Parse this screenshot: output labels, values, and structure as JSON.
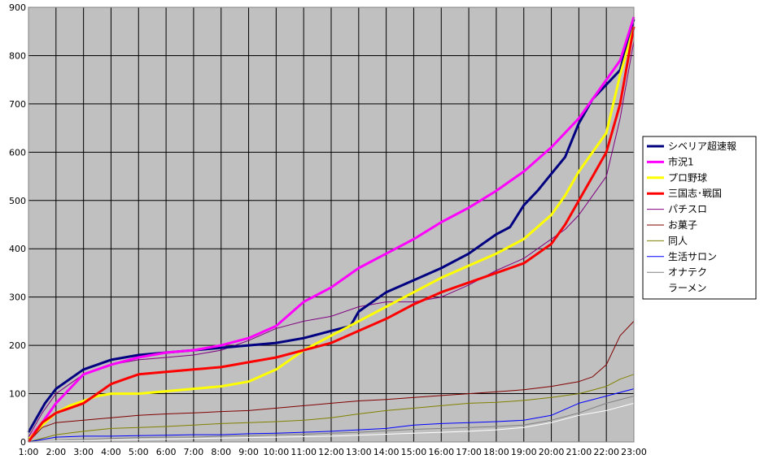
{
  "chart_data": {
    "type": "line",
    "ylim": [
      0,
      900
    ],
    "y_ticks": [
      "0",
      "100",
      "200",
      "300",
      "400",
      "500",
      "600",
      "700",
      "800",
      "900"
    ],
    "x_ticks": [
      "1:00",
      "2:00",
      "3:00",
      "4:00",
      "5:00",
      "6:00",
      "7:00",
      "8:00",
      "9:00",
      "10:00",
      "11:00",
      "12:00",
      "13:00",
      "14:00",
      "15:00",
      "16:00",
      "17:00",
      "18:00",
      "19:00",
      "20:00",
      "21:00",
      "22:00",
      "23:00"
    ],
    "x_hours": [
      1,
      2,
      3,
      4,
      5,
      6,
      7,
      8,
      9,
      10,
      11,
      12,
      13,
      14,
      15,
      16,
      17,
      18,
      19,
      20,
      21,
      22,
      23
    ],
    "grid": true,
    "legend": "right",
    "plot_bg": "#c0c0c0",
    "series": [
      {
        "name": "シベリア超速報",
        "color": "#000080",
        "width": 3,
        "x": [
          1,
          1.3,
          1.6,
          2,
          2.5,
          3,
          3.5,
          4,
          5,
          6,
          7,
          8,
          9,
          10,
          11,
          12,
          12.7,
          13,
          14,
          15,
          16,
          17,
          18,
          18.5,
          19,
          19.5,
          20,
          20.5,
          21,
          21.5,
          22,
          22.5,
          23
        ],
        "y": [
          20,
          50,
          80,
          110,
          130,
          150,
          160,
          170,
          180,
          185,
          190,
          195,
          200,
          205,
          215,
          230,
          240,
          270,
          310,
          335,
          360,
          390,
          430,
          445,
          490,
          520,
          555,
          590,
          660,
          710,
          740,
          770,
          875
        ]
      },
      {
        "name": "市況1",
        "color": "#ff00ff",
        "width": 3,
        "x": [
          1,
          1.5,
          2,
          2.5,
          3,
          4,
          5,
          6,
          7,
          8,
          9,
          10,
          11,
          12,
          13,
          14,
          15,
          16,
          17,
          18,
          19,
          20,
          21,
          22,
          22.5,
          23
        ],
        "y": [
          5,
          40,
          80,
          110,
          140,
          160,
          175,
          185,
          190,
          200,
          215,
          240,
          290,
          320,
          360,
          390,
          420,
          455,
          485,
          520,
          560,
          610,
          670,
          750,
          790,
          880
        ]
      },
      {
        "name": "プロ野球",
        "color": "#ffff00",
        "width": 3,
        "x": [
          1,
          1.5,
          2,
          2.5,
          3,
          3.5,
          4,
          5,
          6,
          7,
          8,
          9,
          10,
          11,
          12,
          13,
          14,
          15,
          16,
          17,
          18,
          19,
          20,
          20.5,
          21,
          21.5,
          22,
          22.5,
          23
        ],
        "y": [
          5,
          35,
          60,
          75,
          85,
          95,
          100,
          100,
          105,
          110,
          115,
          125,
          150,
          190,
          220,
          250,
          280,
          310,
          340,
          365,
          390,
          420,
          470,
          510,
          560,
          600,
          640,
          760,
          860
        ]
      },
      {
        "name": "三国志･戦国",
        "color": "#ff0000",
        "width": 3,
        "x": [
          1,
          1.5,
          2,
          2.5,
          3,
          3.5,
          4,
          4.5,
          5,
          6,
          7,
          8,
          9,
          10,
          11,
          12,
          13,
          14,
          15,
          16,
          17,
          18,
          19,
          20,
          20.5,
          21,
          21.5,
          22,
          22.5,
          23
        ],
        "y": [
          0,
          40,
          60,
          70,
          80,
          100,
          120,
          130,
          140,
          145,
          150,
          155,
          165,
          175,
          190,
          205,
          230,
          255,
          285,
          310,
          330,
          350,
          370,
          410,
          450,
          500,
          550,
          600,
          700,
          860
        ]
      },
      {
        "name": "パチスロ",
        "color": "#800080",
        "width": 1,
        "x": [
          1,
          1.5,
          2,
          2.5,
          3,
          3.5,
          4,
          5,
          6,
          7,
          8,
          9,
          10,
          11,
          12,
          13,
          14,
          15,
          16,
          17,
          18,
          19,
          20,
          20.5,
          21,
          21.5,
          22,
          22.5,
          23
        ],
        "y": [
          10,
          60,
          100,
          120,
          140,
          150,
          160,
          170,
          175,
          180,
          190,
          210,
          235,
          250,
          260,
          280,
          290,
          290,
          300,
          325,
          355,
          380,
          420,
          440,
          470,
          510,
          550,
          670,
          830
        ]
      },
      {
        "name": "お菓子",
        "color": "#800000",
        "width": 1,
        "x": [
          1,
          1.5,
          2,
          3,
          4,
          5,
          6,
          7,
          8,
          9,
          10,
          11,
          12,
          13,
          14,
          15,
          16,
          17,
          18,
          19,
          20,
          21,
          21.5,
          22,
          22.5,
          23
        ],
        "y": [
          0,
          30,
          40,
          45,
          50,
          55,
          58,
          60,
          63,
          65,
          70,
          75,
          80,
          85,
          88,
          92,
          96,
          100,
          104,
          108,
          115,
          125,
          135,
          160,
          220,
          250
        ]
      },
      {
        "name": "同人",
        "color": "#808000",
        "width": 1,
        "x": [
          1,
          2,
          3,
          4,
          5,
          6,
          7,
          8,
          9,
          10,
          11,
          12,
          13,
          14,
          15,
          16,
          17,
          18,
          19,
          20,
          21,
          22,
          22.5,
          23
        ],
        "y": [
          0,
          15,
          22,
          28,
          30,
          32,
          35,
          38,
          40,
          42,
          45,
          50,
          58,
          65,
          70,
          75,
          80,
          82,
          86,
          92,
          100,
          115,
          130,
          140
        ]
      },
      {
        "name": "生活サロン",
        "color": "#0000ff",
        "width": 1,
        "x": [
          1,
          2,
          3,
          4,
          5,
          6,
          7,
          8,
          9,
          10,
          11,
          12,
          13,
          14,
          15,
          16,
          17,
          18,
          19,
          20,
          21,
          22,
          23
        ],
        "y": [
          0,
          10,
          12,
          12,
          13,
          14,
          15,
          15,
          17,
          18,
          20,
          22,
          25,
          28,
          35,
          38,
          40,
          42,
          45,
          55,
          80,
          95,
          110
        ]
      },
      {
        "name": "オナテク",
        "color": "#808080",
        "width": 1,
        "x": [
          1,
          2,
          3,
          4,
          5,
          6,
          7,
          8,
          9,
          10,
          11,
          12,
          13,
          14,
          15,
          16,
          17,
          18,
          19,
          20,
          21,
          22,
          23
        ],
        "y": [
          0,
          3,
          5,
          7,
          9,
          10,
          10,
          12,
          13,
          15,
          16,
          18,
          20,
          23,
          26,
          28,
          30,
          32,
          35,
          45,
          60,
          80,
          95
        ]
      },
      {
        "name": "ラーメン",
        "color": "#ffffff",
        "width": 1,
        "x": [
          1,
          2,
          3,
          4,
          5,
          6,
          7,
          8,
          9,
          10,
          11,
          12,
          13,
          14,
          15,
          16,
          17,
          18,
          19,
          20,
          21,
          22,
          23
        ],
        "y": [
          0,
          2,
          3,
          4,
          5,
          6,
          7,
          8,
          9,
          10,
          11,
          12,
          14,
          16,
          18,
          20,
          22,
          25,
          30,
          40,
          55,
          65,
          80
        ]
      }
    ]
  }
}
